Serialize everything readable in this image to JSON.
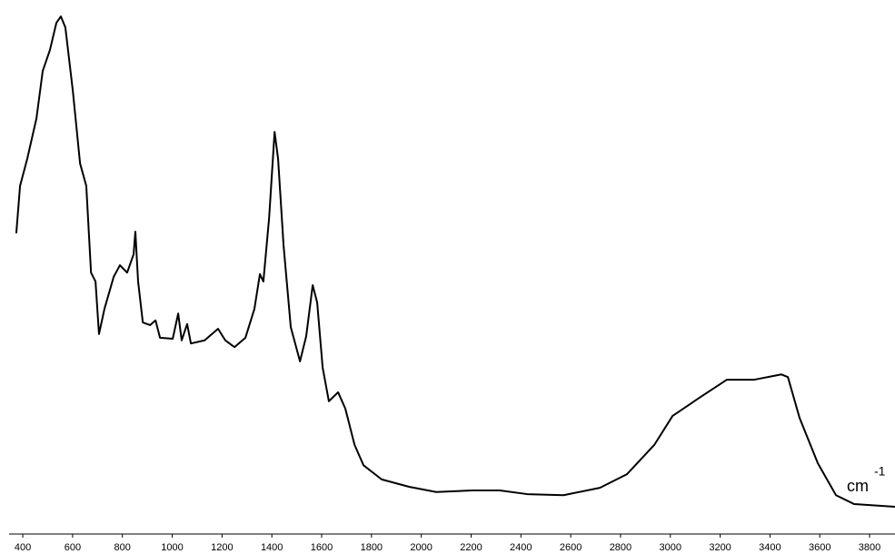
{
  "chart_data": {
    "type": "line",
    "x_label": "cm",
    "x_label_superscript": "-1",
    "x": [
      374,
      389,
      418,
      455,
      480,
      509,
      535,
      553,
      571,
      601,
      630,
      655,
      674,
      692,
      706,
      728,
      765,
      790,
      819,
      845,
      852,
      863,
      882,
      911,
      933,
      951,
      1002,
      1024,
      1038,
      1060,
      1075,
      1130,
      1184,
      1213,
      1250,
      1294,
      1330,
      1352,
      1366,
      1389,
      1411,
      1425,
      1447,
      1476,
      1513,
      1538,
      1564,
      1582,
      1604,
      1629,
      1666,
      1695,
      1732,
      1768,
      1841,
      1951,
      2060,
      2206,
      2315,
      2425,
      2571,
      2717,
      2826,
      2936,
      3009,
      3118,
      3227,
      3337,
      3446,
      3472,
      3519,
      3592,
      3665,
      3738,
      3902
    ],
    "series": [
      {
        "color": "#000000",
        "values": [
          57.3,
          66.3,
          71.5,
          79.2,
          88.2,
          92.2,
          97.4,
          98.6,
          96.5,
          84.4,
          70.6,
          66.3,
          49.8,
          48.1,
          38.1,
          42.9,
          49.0,
          51.2,
          49.8,
          53.3,
          57.6,
          48.1,
          40.3,
          39.8,
          40.7,
          37.4,
          37.2,
          42.0,
          36.9,
          40.0,
          36.3,
          36.9,
          39.1,
          36.9,
          35.6,
          37.4,
          42.9,
          49.5,
          48.1,
          60.2,
          76.6,
          71.5,
          55.0,
          39.4,
          32.9,
          37.7,
          47.4,
          44.1,
          31.7,
          25.3,
          27.0,
          23.9,
          17.0,
          13.1,
          10.4,
          9.0,
          8.0,
          8.3,
          8.3,
          7.6,
          7.4,
          8.8,
          11.4,
          17.0,
          22.5,
          26.0,
          29.4,
          29.4,
          30.4,
          29.9,
          22.1,
          13.5,
          7.4,
          5.7,
          5.2
        ]
      }
    ],
    "xlim": [
      345,
      3902
    ],
    "ylim": [
      0,
      100
    ],
    "xticks": [
      400,
      600,
      800,
      1000,
      1200,
      1400,
      1600,
      1800,
      2000,
      2200,
      2400,
      2600,
      2800,
      3000,
      3200,
      3400,
      3600,
      3800
    ]
  }
}
